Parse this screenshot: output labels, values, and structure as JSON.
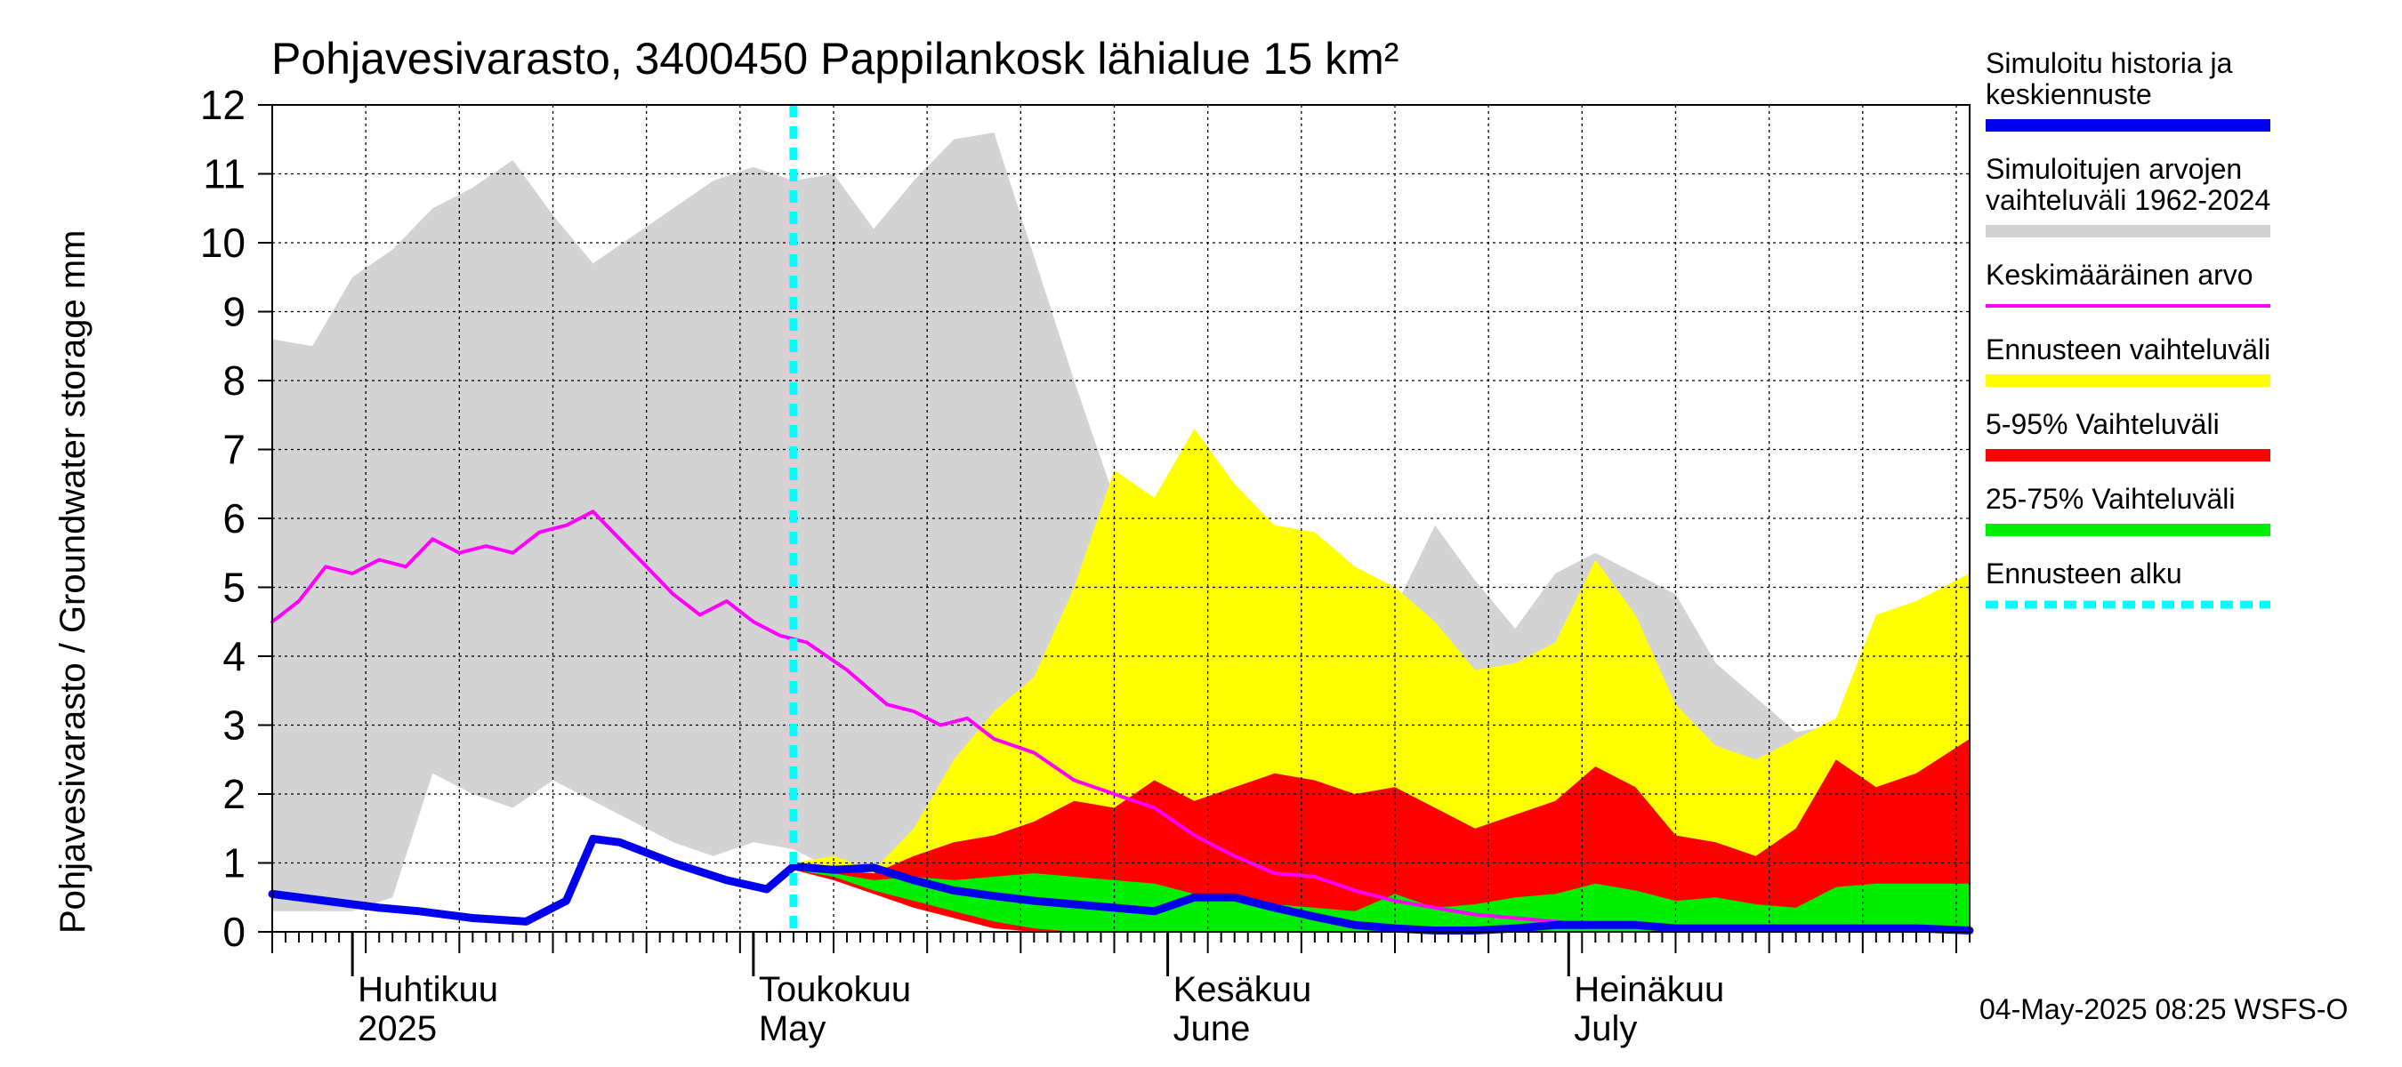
{
  "chart_data": {
    "type": "area",
    "title": "Pohjavesivarasto, 3400450 Pappilankosk lähialue 15 km²",
    "ylabel": "Pohjavesivarasto / Groundwater storage   mm",
    "ylim": [
      0,
      12
    ],
    "yticks": [
      "0",
      "1",
      "2",
      "3",
      "4",
      "5",
      "6",
      "7",
      "8",
      "9",
      "10",
      "11",
      "12"
    ],
    "xlim": [
      "2025-03-26",
      "2025-07-31"
    ],
    "grid": true,
    "month_labels": [
      {
        "fi": "Huhtikuu",
        "en": "2025"
      },
      {
        "fi": "Toukokuu",
        "en": "May"
      },
      {
        "fi": "Kesäkuu",
        "en": "June"
      },
      {
        "fi": "Heinäkuu",
        "en": "July"
      }
    ],
    "forecast_start": "2025-05-04",
    "timestamp": "04-May-2025 08:25 WSFS-O",
    "legend_position": "right",
    "legend": [
      {
        "label": "Simuloitu historia ja keskiennuste",
        "color": "#0000ee",
        "style": "thick"
      },
      {
        "label": "Simuloitujen arvojen vaihteluväli 1962-2024",
        "color": "#d3d3d3",
        "style": "band"
      },
      {
        "label": "Keskimääräinen arvo",
        "color": "#ff00ff",
        "style": "thin"
      },
      {
        "label": "Ennusteen vaihteluväli",
        "color": "#ffff00",
        "style": "band"
      },
      {
        "label": "5-95% Vaihteluväli",
        "color": "#ff0000",
        "style": "band"
      },
      {
        "label": "25-75% Vaihteluväli",
        "color": "#00ee00",
        "style": "band"
      },
      {
        "label": "Ennusteen alku",
        "color": "#00ffff",
        "style": "dashed"
      }
    ],
    "series": [
      {
        "name": "Simuloitujen arvojen vaihteluväli 1962-2024",
        "kind": "band",
        "color": "#d3d3d3",
        "x": [
          "2025-03-26",
          "2025-03-29",
          "2025-04-01",
          "2025-04-04",
          "2025-04-07",
          "2025-04-10",
          "2025-04-13",
          "2025-04-16",
          "2025-04-19",
          "2025-04-22",
          "2025-04-25",
          "2025-04-28",
          "2025-05-01",
          "2025-05-04",
          "2025-05-07",
          "2025-05-10",
          "2025-05-13",
          "2025-05-16",
          "2025-05-19",
          "2025-05-22",
          "2025-05-25",
          "2025-05-28",
          "2025-05-31",
          "2025-06-03",
          "2025-06-06",
          "2025-06-09",
          "2025-06-12",
          "2025-06-15",
          "2025-06-18",
          "2025-06-21",
          "2025-06-24",
          "2025-06-27",
          "2025-06-30",
          "2025-07-03",
          "2025-07-06",
          "2025-07-09",
          "2025-07-12",
          "2025-07-15",
          "2025-07-18",
          "2025-07-21",
          "2025-07-24",
          "2025-07-27",
          "2025-07-31"
        ],
        "low": [
          0.3,
          0.3,
          0.3,
          0.5,
          2.3,
          2.0,
          1.8,
          2.2,
          1.9,
          1.6,
          1.3,
          1.1,
          1.3,
          1.2,
          0.9,
          0.7,
          0.8,
          0.5,
          0.3,
          0.15,
          0.1,
          0.05,
          0.05,
          0.05,
          0.05,
          0.05,
          0.05,
          0.05,
          0.05,
          0.05,
          0.05,
          0.05,
          0.05,
          0.05,
          0.05,
          0.05,
          0.05,
          0.05,
          0.05,
          0.05,
          0.05,
          0.05,
          0.05
        ],
        "high": [
          8.6,
          8.5,
          9.5,
          9.9,
          10.5,
          10.8,
          11.2,
          10.4,
          9.7,
          10.1,
          10.5,
          10.9,
          11.1,
          10.9,
          11.0,
          10.2,
          10.9,
          11.5,
          11.6,
          9.8,
          8.0,
          6.3,
          5.5,
          5.5,
          4.6,
          4.3,
          4.7,
          4.3,
          4.7,
          5.9,
          5.1,
          4.4,
          5.2,
          5.5,
          5.2,
          4.9,
          3.9,
          3.4,
          2.9,
          3.0,
          3.7,
          4.8,
          4.9
        ]
      },
      {
        "name": "Ennusteen vaihteluväli",
        "kind": "band",
        "color": "#ffff00",
        "x": [
          "2025-05-04",
          "2025-05-07",
          "2025-05-10",
          "2025-05-13",
          "2025-05-16",
          "2025-05-19",
          "2025-05-22",
          "2025-05-25",
          "2025-05-28",
          "2025-05-31",
          "2025-06-03",
          "2025-06-06",
          "2025-06-09",
          "2025-06-12",
          "2025-06-15",
          "2025-06-18",
          "2025-06-21",
          "2025-06-24",
          "2025-06-27",
          "2025-06-30",
          "2025-07-03",
          "2025-07-06",
          "2025-07-09",
          "2025-07-12",
          "2025-07-15",
          "2025-07-18",
          "2025-07-21",
          "2025-07-24",
          "2025-07-27",
          "2025-07-31"
        ],
        "low": [
          0.9,
          0.8,
          0.6,
          0.4,
          0.25,
          0.1,
          0.02,
          0,
          0,
          0,
          0,
          0,
          0,
          0,
          0,
          0,
          0,
          0,
          0,
          0,
          0,
          0,
          0,
          0,
          0,
          0,
          0,
          0,
          0,
          0
        ],
        "high": [
          1.0,
          1.1,
          0.9,
          1.5,
          2.5,
          3.2,
          3.7,
          5.0,
          6.7,
          6.3,
          7.3,
          6.5,
          5.9,
          5.8,
          5.3,
          5.0,
          4.5,
          3.8,
          3.9,
          4.2,
          5.4,
          4.6,
          3.3,
          2.7,
          2.5,
          2.8,
          3.1,
          4.6,
          4.8,
          5.2
        ]
      },
      {
        "name": "5-95% Vaihteluväli",
        "kind": "band",
        "color": "#ff0000",
        "x": [
          "2025-05-04",
          "2025-05-07",
          "2025-05-10",
          "2025-05-13",
          "2025-05-16",
          "2025-05-19",
          "2025-05-22",
          "2025-05-25",
          "2025-05-28",
          "2025-05-31",
          "2025-06-03",
          "2025-06-06",
          "2025-06-09",
          "2025-06-12",
          "2025-06-15",
          "2025-06-18",
          "2025-06-21",
          "2025-06-24",
          "2025-06-27",
          "2025-06-30",
          "2025-07-03",
          "2025-07-06",
          "2025-07-09",
          "2025-07-12",
          "2025-07-15",
          "2025-07-18",
          "2025-07-21",
          "2025-07-24",
          "2025-07-27",
          "2025-07-31"
        ],
        "low": [
          0.9,
          0.75,
          0.55,
          0.35,
          0.2,
          0.05,
          0,
          0,
          0,
          0,
          0,
          0,
          0,
          0,
          0,
          0,
          0,
          0,
          0,
          0,
          0,
          0,
          0,
          0,
          0,
          0,
          0,
          0,
          0,
          0
        ],
        "high": [
          0.95,
          0.9,
          0.85,
          1.1,
          1.3,
          1.4,
          1.6,
          1.9,
          1.8,
          2.2,
          1.9,
          2.1,
          2.3,
          2.2,
          2.0,
          2.1,
          1.8,
          1.5,
          1.7,
          1.9,
          2.4,
          2.1,
          1.4,
          1.3,
          1.1,
          1.5,
          2.5,
          2.1,
          2.3,
          2.8
        ]
      },
      {
        "name": "25-75% Vaihteluväli",
        "kind": "band",
        "color": "#00ee00",
        "x": [
          "2025-05-04",
          "2025-05-07",
          "2025-05-10",
          "2025-05-13",
          "2025-05-16",
          "2025-05-19",
          "2025-05-22",
          "2025-05-25",
          "2025-05-28",
          "2025-05-31",
          "2025-06-03",
          "2025-06-06",
          "2025-06-09",
          "2025-06-12",
          "2025-06-15",
          "2025-06-18",
          "2025-06-21",
          "2025-06-24",
          "2025-06-27",
          "2025-06-30",
          "2025-07-03",
          "2025-07-06",
          "2025-07-09",
          "2025-07-12",
          "2025-07-15",
          "2025-07-18",
          "2025-07-21",
          "2025-07-24",
          "2025-07-27",
          "2025-07-31"
        ],
        "low": [
          0.9,
          0.8,
          0.6,
          0.45,
          0.3,
          0.15,
          0.05,
          0,
          0,
          0,
          0,
          0,
          0,
          0,
          0,
          0,
          0,
          0,
          0,
          0,
          0,
          0,
          0,
          0,
          0,
          0,
          0,
          0,
          0,
          0
        ],
        "high": [
          0.9,
          0.85,
          0.75,
          0.8,
          0.75,
          0.8,
          0.85,
          0.8,
          0.75,
          0.7,
          0.55,
          0.5,
          0.4,
          0.35,
          0.3,
          0.55,
          0.35,
          0.4,
          0.5,
          0.55,
          0.7,
          0.6,
          0.45,
          0.5,
          0.4,
          0.35,
          0.65,
          0.7,
          0.7,
          0.7
        ]
      },
      {
        "name": "Simuloitu historia ja keskiennuste",
        "kind": "line",
        "color": "#0000ee",
        "width": 9,
        "x": [
          "2025-03-26",
          "2025-03-30",
          "2025-04-03",
          "2025-04-06",
          "2025-04-10",
          "2025-04-14",
          "2025-04-17",
          "2025-04-19",
          "2025-04-21",
          "2025-04-23",
          "2025-04-25",
          "2025-04-29",
          "2025-05-02",
          "2025-05-04",
          "2025-05-07",
          "2025-05-10",
          "2025-05-13",
          "2025-05-16",
          "2025-05-19",
          "2025-05-22",
          "2025-05-25",
          "2025-05-28",
          "2025-05-31",
          "2025-06-03",
          "2025-06-06",
          "2025-06-09",
          "2025-06-12",
          "2025-06-15",
          "2025-06-18",
          "2025-06-21",
          "2025-06-24",
          "2025-06-27",
          "2025-06-30",
          "2025-07-03",
          "2025-07-06",
          "2025-07-09",
          "2025-07-12",
          "2025-07-15",
          "2025-07-18",
          "2025-07-21",
          "2025-07-24",
          "2025-07-27",
          "2025-07-31"
        ],
        "y": [
          0.55,
          0.45,
          0.35,
          0.3,
          0.2,
          0.15,
          0.45,
          1.35,
          1.3,
          1.15,
          1.0,
          0.75,
          0.62,
          0.95,
          0.9,
          0.93,
          0.75,
          0.6,
          0.52,
          0.45,
          0.4,
          0.35,
          0.3,
          0.5,
          0.5,
          0.35,
          0.22,
          0.1,
          0.05,
          0.02,
          0.02,
          0.05,
          0.1,
          0.1,
          0.1,
          0.05,
          0.05,
          0.05,
          0.05,
          0.05,
          0.05,
          0.05,
          0.02
        ]
      },
      {
        "name": "Keskimääräinen arvo",
        "kind": "line",
        "color": "#ff00ff",
        "width": 4,
        "x": [
          "2025-03-26",
          "2025-03-28",
          "2025-03-30",
          "2025-04-01",
          "2025-04-03",
          "2025-04-05",
          "2025-04-07",
          "2025-04-09",
          "2025-04-11",
          "2025-04-13",
          "2025-04-15",
          "2025-04-17",
          "2025-04-19",
          "2025-04-21",
          "2025-04-23",
          "2025-04-25",
          "2025-04-27",
          "2025-04-29",
          "2025-05-01",
          "2025-05-03",
          "2025-05-05",
          "2025-05-08",
          "2025-05-11",
          "2025-05-13",
          "2025-05-15",
          "2025-05-17",
          "2025-05-19",
          "2025-05-22",
          "2025-05-25",
          "2025-05-28",
          "2025-05-31",
          "2025-06-03",
          "2025-06-06",
          "2025-06-09",
          "2025-06-12",
          "2025-06-15",
          "2025-06-18",
          "2025-06-21",
          "2025-06-24",
          "2025-06-27",
          "2025-06-30",
          "2025-07-03",
          "2025-07-06",
          "2025-07-09",
          "2025-07-12",
          "2025-07-15",
          "2025-07-18",
          "2025-07-21",
          "2025-07-24",
          "2025-07-27",
          "2025-07-31"
        ],
        "y": [
          4.5,
          4.8,
          5.3,
          5.2,
          5.4,
          5.3,
          5.7,
          5.5,
          5.6,
          5.5,
          5.8,
          5.9,
          6.1,
          5.7,
          5.3,
          4.9,
          4.6,
          4.8,
          4.5,
          4.3,
          4.2,
          3.8,
          3.3,
          3.2,
          3.0,
          3.1,
          2.8,
          2.6,
          2.2,
          2.0,
          1.8,
          1.4,
          1.1,
          0.85,
          0.8,
          0.6,
          0.45,
          0.35,
          0.25,
          0.2,
          0.15,
          0.1,
          0.1,
          0.05,
          0.05,
          0.05,
          0.02,
          0.02,
          0.02,
          0.02,
          0.02
        ]
      }
    ]
  }
}
